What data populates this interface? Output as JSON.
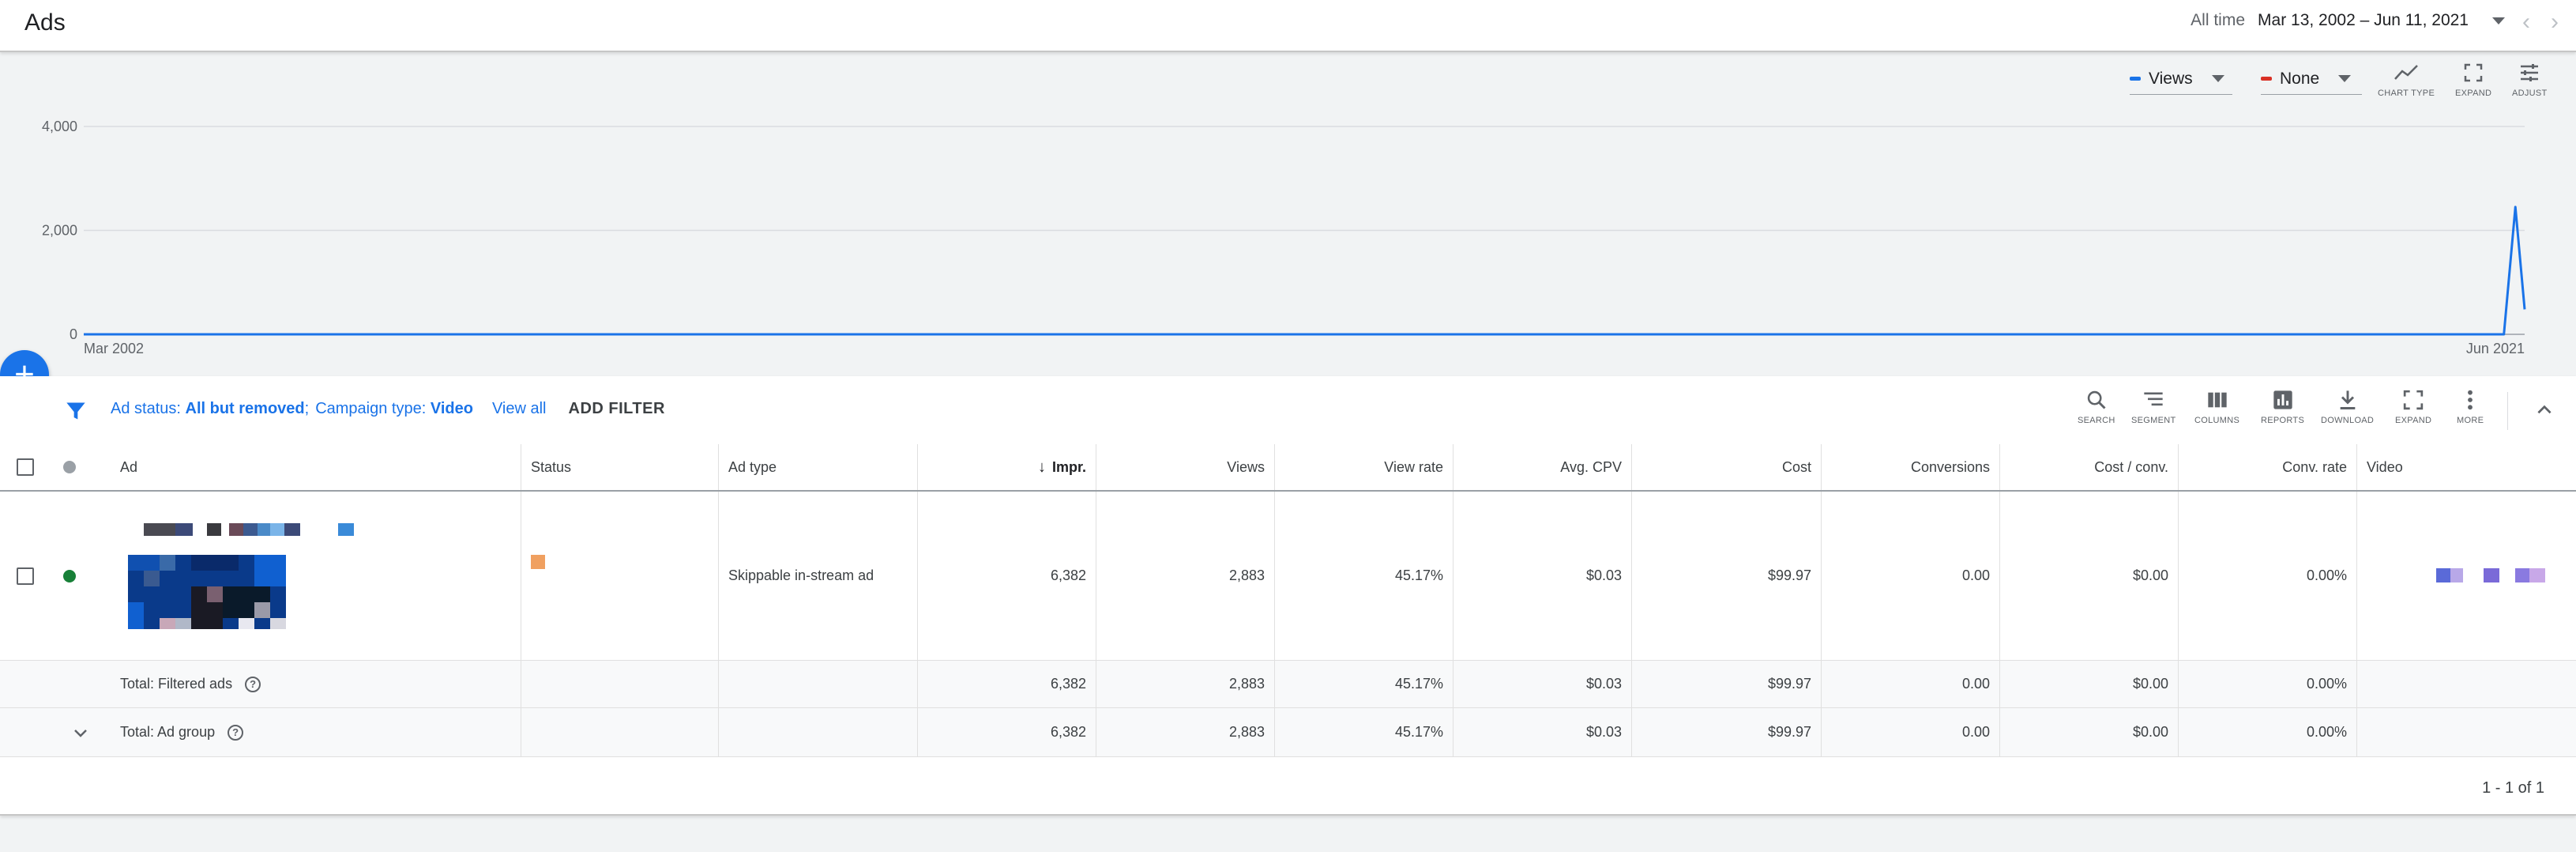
{
  "header": {
    "title": "Ads",
    "date_label": "All time",
    "date_value": "Mar 13, 2002 – Jun 11, 2021"
  },
  "chart_controls": {
    "metric1": "Views",
    "metric1_color": "#1a73e8",
    "metric2": "None",
    "metric2_color": "#d93025",
    "tools": [
      "CHART TYPE",
      "EXPAND",
      "ADJUST"
    ]
  },
  "chart_data": {
    "type": "line",
    "x_labels": [
      "Mar 2002",
      "Jun 2021"
    ],
    "y_ticks": [
      0,
      2000,
      4000
    ],
    "y_tick_labels": [
      "0",
      "2,000",
      "4,000"
    ],
    "ylim": [
      0,
      4000
    ],
    "grid": true,
    "series": [
      {
        "name": "Views",
        "color": "#1a73e8",
        "points": [
          {
            "x": 0.0,
            "y": 0
          },
          {
            "x": 0.9915,
            "y": 0
          },
          {
            "x": 0.9962,
            "y": 2450
          },
          {
            "x": 1.0,
            "y": 480
          }
        ]
      }
    ]
  },
  "filter_bar": {
    "status_label": "Ad status:",
    "status_value": "All but removed",
    "status_sep": ";",
    "campaign_label": "Campaign type:",
    "campaign_value": "Video",
    "view_all": "View all",
    "add_filter": "ADD FILTER"
  },
  "table_tools": [
    "SEARCH",
    "SEGMENT",
    "COLUMNS",
    "REPORTS",
    "DOWNLOAD",
    "EXPAND",
    "MORE"
  ],
  "table": {
    "headers": [
      "Ad",
      "Status",
      "Ad type",
      "Impr.",
      "Views",
      "View rate",
      "Avg. CPV",
      "Cost",
      "Conversions",
      "Cost / conv.",
      "Conv. rate",
      "Video"
    ],
    "rows": [
      {
        "ad_type": "Skippable in-stream ad",
        "impr": "6,382",
        "views": "2,883",
        "view_rate": "45.17%",
        "avg_cpv": "$0.03",
        "cost": "$99.97",
        "conversions": "0.00",
        "cost_conv": "$0.00",
        "conv_rate": "0.00%",
        "status_color": "#188038"
      }
    ],
    "totals": [
      {
        "label": "Total: Filtered ads",
        "impr": "6,382",
        "views": "2,883",
        "view_rate": "45.17%",
        "avg_cpv": "$0.03",
        "cost": "$99.97",
        "conversions": "0.00",
        "cost_conv": "$0.00",
        "conv_rate": "0.00%"
      },
      {
        "label": "Total: Ad group",
        "impr": "6,382",
        "views": "2,883",
        "view_rate": "45.17%",
        "avg_cpv": "$0.03",
        "cost": "$99.97",
        "conversions": "0.00",
        "cost_conv": "$0.00",
        "conv_rate": "0.00%"
      }
    ],
    "pagination": "1 - 1 of 1"
  }
}
